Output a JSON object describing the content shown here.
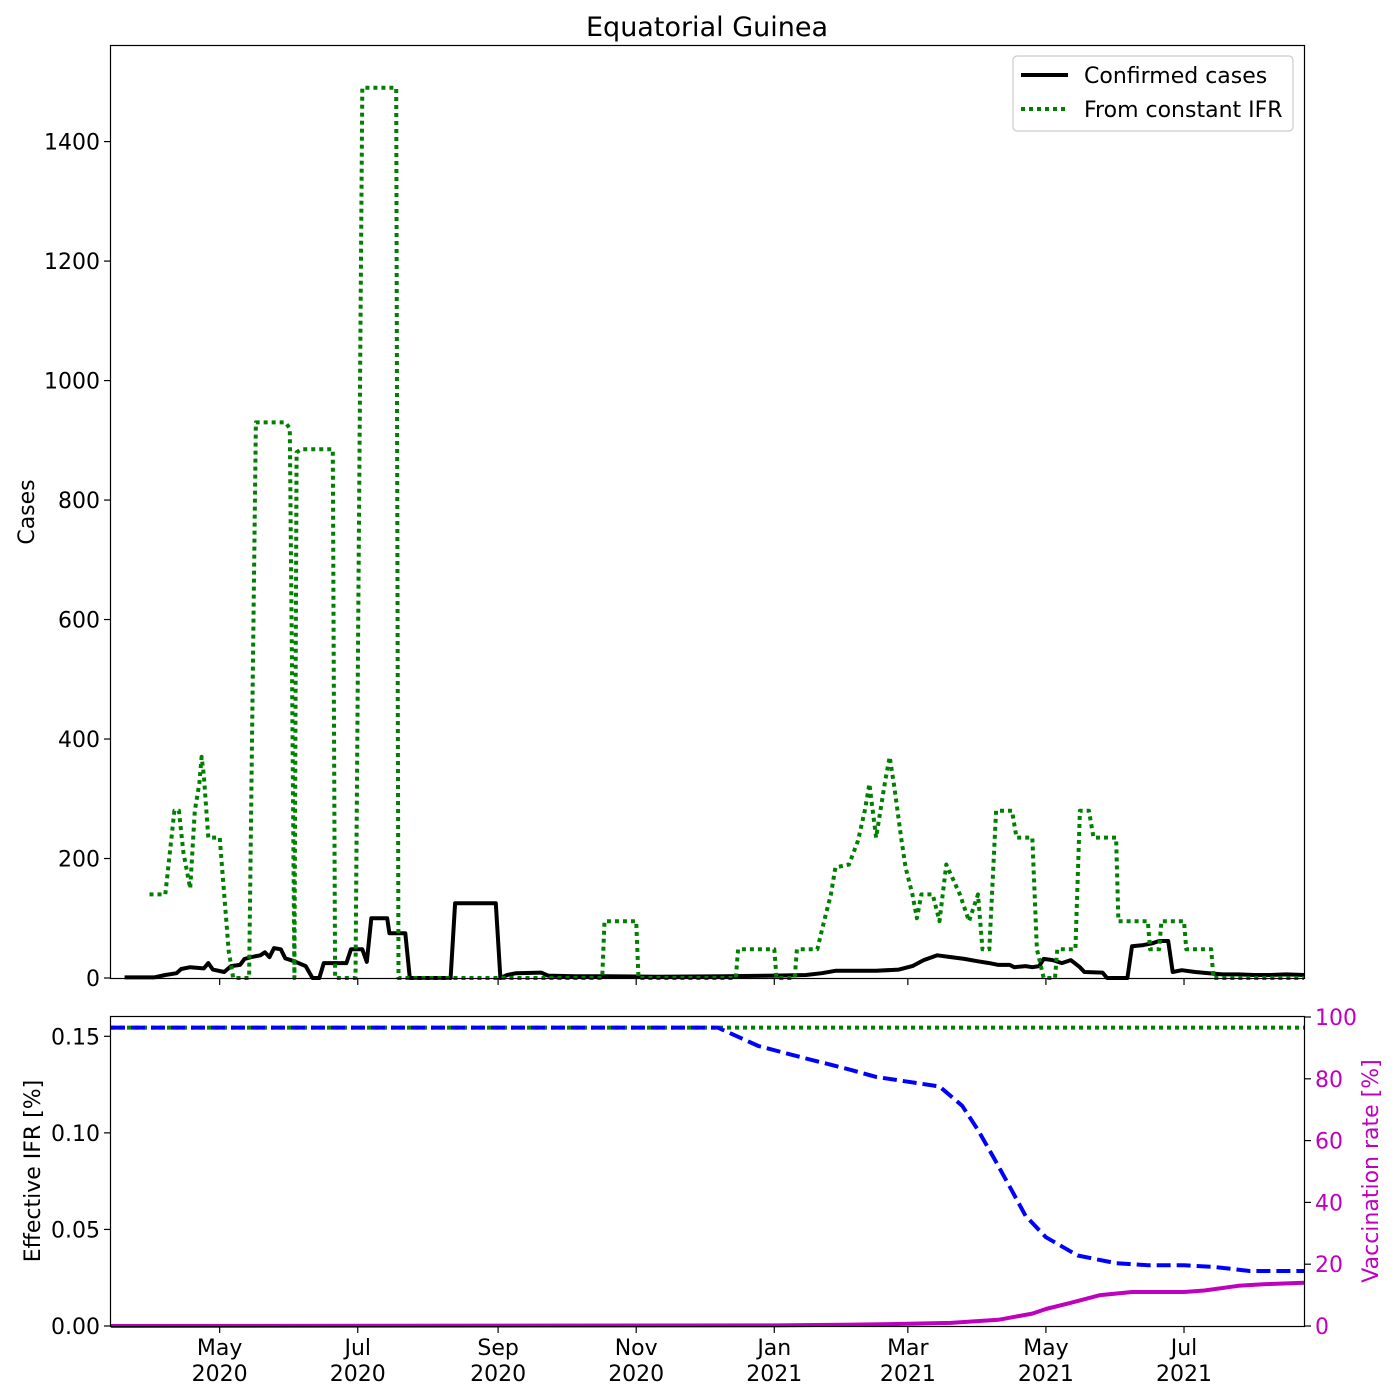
{
  "title": "Equatorial Guinea",
  "legend": {
    "position": "top-right",
    "entries": [
      {
        "label": "Confirmed cases",
        "style": "solid",
        "color": "#000000"
      },
      {
        "label": "From constant IFR",
        "style": "dotted",
        "color": "#008000"
      }
    ]
  },
  "x_ticks": [
    {
      "date": "2020-05-01",
      "line1": "May",
      "line2": "2020"
    },
    {
      "date": "2020-07-01",
      "line1": "Jul",
      "line2": "2020"
    },
    {
      "date": "2020-09-01",
      "line1": "Sep",
      "line2": "2020"
    },
    {
      "date": "2020-11-01",
      "line1": "Nov",
      "line2": "2020"
    },
    {
      "date": "2021-01-01",
      "line1": "Jan",
      "line2": "2021"
    },
    {
      "date": "2021-03-01",
      "line1": "Mar",
      "line2": "2021"
    },
    {
      "date": "2021-05-01",
      "line1": "May",
      "line2": "2021"
    },
    {
      "date": "2021-07-01",
      "line1": "Jul",
      "line2": "2021"
    }
  ],
  "chart_data": [
    {
      "type": "line",
      "title": "Equatorial Guinea",
      "xlabel": "",
      "ylabel": "Cases",
      "xlim": [
        "2020-03-14",
        "2021-08-23"
      ],
      "ylim": [
        0,
        1560
      ],
      "yticks": [
        0,
        200,
        400,
        600,
        800,
        1000,
        1200,
        1400
      ],
      "grid": false,
      "series": [
        {
          "name": "Confirmed cases",
          "color": "#000000",
          "style": "solid",
          "points": [
            [
              "2020-03-20",
              1
            ],
            [
              "2020-04-02",
              1
            ],
            [
              "2020-04-07",
              5
            ],
            [
              "2020-04-12",
              8
            ],
            [
              "2020-04-14",
              15
            ],
            [
              "2020-04-18",
              18
            ],
            [
              "2020-04-24",
              16
            ],
            [
              "2020-04-26",
              25
            ],
            [
              "2020-04-28",
              14
            ],
            [
              "2020-05-03",
              10
            ],
            [
              "2020-05-06",
              20
            ],
            [
              "2020-05-10",
              22
            ],
            [
              "2020-05-12",
              32
            ],
            [
              "2020-05-15",
              35
            ],
            [
              "2020-05-19",
              38
            ],
            [
              "2020-05-21",
              43
            ],
            [
              "2020-05-23",
              35
            ],
            [
              "2020-05-25",
              50
            ],
            [
              "2020-05-28",
              48
            ],
            [
              "2020-05-30",
              33
            ],
            [
              "2020-06-03",
              28
            ],
            [
              "2020-06-08",
              20
            ],
            [
              "2020-06-11",
              0
            ],
            [
              "2020-06-14",
              0
            ],
            [
              "2020-06-16",
              25
            ],
            [
              "2020-06-26",
              25
            ],
            [
              "2020-06-28",
              48
            ],
            [
              "2020-07-03",
              48
            ],
            [
              "2020-07-05",
              27
            ],
            [
              "2020-07-07",
              100
            ],
            [
              "2020-07-14",
              100
            ],
            [
              "2020-07-15",
              75
            ],
            [
              "2020-07-22",
              75
            ],
            [
              "2020-07-24",
              0
            ],
            [
              "2020-08-11",
              0
            ],
            [
              "2020-08-13",
              125
            ],
            [
              "2020-08-31",
              125
            ],
            [
              "2020-09-02",
              0
            ],
            [
              "2020-09-05",
              5
            ],
            [
              "2020-09-09",
              8
            ],
            [
              "2020-09-20",
              9
            ],
            [
              "2020-09-23",
              4
            ],
            [
              "2020-10-05",
              3
            ],
            [
              "2020-10-20",
              3
            ],
            [
              "2020-11-10",
              2
            ],
            [
              "2020-12-10",
              3
            ],
            [
              "2021-01-01",
              4
            ],
            [
              "2021-01-15",
              5
            ],
            [
              "2021-01-22",
              8
            ],
            [
              "2021-01-28",
              12
            ],
            [
              "2021-02-05",
              12
            ],
            [
              "2021-02-15",
              12
            ],
            [
              "2021-02-25",
              14
            ],
            [
              "2021-03-03",
              20
            ],
            [
              "2021-03-08",
              30
            ],
            [
              "2021-03-14",
              38
            ],
            [
              "2021-03-20",
              35
            ],
            [
              "2021-03-26",
              32
            ],
            [
              "2021-04-01",
              28
            ],
            [
              "2021-04-06",
              25
            ],
            [
              "2021-04-10",
              22
            ],
            [
              "2021-04-15",
              22
            ],
            [
              "2021-04-17",
              18
            ],
            [
              "2021-04-22",
              20
            ],
            [
              "2021-04-25",
              18
            ],
            [
              "2021-04-28",
              20
            ],
            [
              "2021-04-30",
              32
            ],
            [
              "2021-05-04",
              30
            ],
            [
              "2021-05-08",
              25
            ],
            [
              "2021-05-12",
              30
            ],
            [
              "2021-05-16",
              18
            ],
            [
              "2021-05-18",
              10
            ],
            [
              "2021-05-26",
              9
            ],
            [
              "2021-05-28",
              0
            ],
            [
              "2021-06-06",
              0
            ],
            [
              "2021-06-08",
              53
            ],
            [
              "2021-06-13",
              55
            ],
            [
              "2021-06-17",
              58
            ],
            [
              "2021-06-20",
              62
            ],
            [
              "2021-06-24",
              62
            ],
            [
              "2021-06-26",
              10
            ],
            [
              "2021-06-30",
              13
            ],
            [
              "2021-07-06",
              10
            ],
            [
              "2021-07-12",
              8
            ],
            [
              "2021-07-18",
              6
            ],
            [
              "2021-07-25",
              6
            ],
            [
              "2021-08-01",
              5
            ],
            [
              "2021-08-08",
              5
            ],
            [
              "2021-08-15",
              6
            ],
            [
              "2021-08-23",
              5
            ]
          ]
        },
        {
          "name": "From constant IFR",
          "color": "#008000",
          "style": "dotted",
          "points": [
            [
              "2020-03-31",
              140
            ],
            [
              "2020-04-07",
              140
            ],
            [
              "2020-04-11",
              280
            ],
            [
              "2020-04-13",
              280
            ],
            [
              "2020-04-15",
              210
            ],
            [
              "2020-04-18",
              150
            ],
            [
              "2020-04-20",
              280
            ],
            [
              "2020-04-22",
              325
            ],
            [
              "2020-04-23",
              370
            ],
            [
              "2020-04-24",
              340
            ],
            [
              "2020-04-26",
              235
            ],
            [
              "2020-05-01",
              235
            ],
            [
              "2020-05-03",
              140
            ],
            [
              "2020-05-05",
              45
            ],
            [
              "2020-05-07",
              0
            ],
            [
              "2020-05-14",
              0
            ],
            [
              "2020-05-17",
              930
            ],
            [
              "2020-05-30",
              930
            ],
            [
              "2020-06-01",
              920
            ],
            [
              "2020-06-02",
              500
            ],
            [
              "2020-06-03",
              0
            ],
            [
              "2020-06-04",
              880
            ],
            [
              "2020-06-06",
              885
            ],
            [
              "2020-06-20",
              885
            ],
            [
              "2020-06-21",
              0
            ],
            [
              "2020-06-26",
              0
            ],
            [
              "2020-06-30",
              0
            ],
            [
              "2020-07-03",
              1490
            ],
            [
              "2020-07-18",
              1490
            ],
            [
              "2020-07-19",
              0
            ],
            [
              "2020-10-17",
              0
            ],
            [
              "2020-10-18",
              95
            ],
            [
              "2020-11-01",
              95
            ],
            [
              "2020-11-02",
              0
            ],
            [
              "2020-12-15",
              0
            ],
            [
              "2020-12-16",
              48
            ],
            [
              "2021-01-01",
              48
            ],
            [
              "2021-01-02",
              0
            ],
            [
              "2021-01-10",
              0
            ],
            [
              "2021-01-11",
              48
            ],
            [
              "2021-01-20",
              48
            ],
            [
              "2021-01-23",
              95
            ],
            [
              "2021-01-26",
              140
            ],
            [
              "2021-01-28",
              185
            ],
            [
              "2021-02-03",
              190
            ],
            [
              "2021-02-07",
              230
            ],
            [
              "2021-02-10",
              280
            ],
            [
              "2021-02-12",
              325
            ],
            [
              "2021-02-15",
              235
            ],
            [
              "2021-02-19",
              330
            ],
            [
              "2021-02-21",
              370
            ],
            [
              "2021-02-23",
              320
            ],
            [
              "2021-02-26",
              235
            ],
            [
              "2021-02-28",
              185
            ],
            [
              "2021-03-03",
              140
            ],
            [
              "2021-03-05",
              100
            ],
            [
              "2021-03-07",
              140
            ],
            [
              "2021-03-12",
              140
            ],
            [
              "2021-03-15",
              95
            ],
            [
              "2021-03-18",
              190
            ],
            [
              "2021-03-24",
              140
            ],
            [
              "2021-03-28",
              95
            ],
            [
              "2021-04-01",
              140
            ],
            [
              "2021-04-03",
              48
            ],
            [
              "2021-04-06",
              48
            ],
            [
              "2021-04-09",
              280
            ],
            [
              "2021-04-16",
              280
            ],
            [
              "2021-04-18",
              235
            ],
            [
              "2021-04-25",
              235
            ],
            [
              "2021-04-27",
              48
            ],
            [
              "2021-04-30",
              0
            ],
            [
              "2021-05-05",
              0
            ],
            [
              "2021-05-06",
              48
            ],
            [
              "2021-05-14",
              48
            ],
            [
              "2021-05-16",
              280
            ],
            [
              "2021-05-20",
              280
            ],
            [
              "2021-05-22",
              235
            ],
            [
              "2021-06-01",
              235
            ],
            [
              "2021-06-02",
              95
            ],
            [
              "2021-06-15",
              95
            ],
            [
              "2021-06-16",
              48
            ],
            [
              "2021-06-20",
              48
            ],
            [
              "2021-06-21",
              95
            ],
            [
              "2021-07-01",
              95
            ],
            [
              "2021-07-02",
              48
            ],
            [
              "2021-07-13",
              48
            ],
            [
              "2021-07-14",
              0
            ],
            [
              "2021-08-23",
              0
            ]
          ]
        }
      ]
    },
    {
      "type": "line",
      "xlabel": "",
      "ylabel": "Effective IFR [%]",
      "ylim": [
        0,
        0.16
      ],
      "yticks": [
        0.0,
        0.05,
        0.1,
        0.15
      ],
      "y2label": "Vaccination rate [%]",
      "y2lim": [
        0,
        100
      ],
      "y2ticks": [
        0,
        20,
        40,
        60,
        80,
        100
      ],
      "grid": false,
      "series": [
        {
          "axis": "left",
          "color": "#008000",
          "style": "dotted",
          "points": [
            [
              "2020-03-14",
              0.1545
            ],
            [
              "2021-08-23",
              0.1545
            ]
          ]
        },
        {
          "axis": "left",
          "color": "#0000ff",
          "style": "dashed",
          "points": [
            [
              "2020-03-14",
              0.1545
            ],
            [
              "2020-12-07",
              0.1545
            ],
            [
              "2020-12-25",
              0.145
            ],
            [
              "2021-01-15",
              0.1385
            ],
            [
              "2021-02-01",
              0.1335
            ],
            [
              "2021-02-15",
              0.129
            ],
            [
              "2021-03-01",
              0.1265
            ],
            [
              "2021-03-15",
              0.124
            ],
            [
              "2021-03-25",
              0.114
            ],
            [
              "2021-04-01",
              0.1015
            ],
            [
              "2021-04-08",
              0.087
            ],
            [
              "2021-04-16",
              0.07
            ],
            [
              "2021-04-22",
              0.057
            ],
            [
              "2021-05-01",
              0.046
            ],
            [
              "2021-05-15",
              0.0365
            ],
            [
              "2021-06-01",
              0.0325
            ],
            [
              "2021-06-15",
              0.0315
            ],
            [
              "2021-07-01",
              0.0315
            ],
            [
              "2021-07-15",
              0.0305
            ],
            [
              "2021-07-30",
              0.0285
            ],
            [
              "2021-08-23",
              0.0285
            ]
          ]
        },
        {
          "axis": "right",
          "color": "#bf00bf",
          "style": "solid",
          "points": [
            [
              "2020-03-14",
              0
            ],
            [
              "2021-01-01",
              0.2
            ],
            [
              "2021-02-01",
              0.4
            ],
            [
              "2021-03-01",
              0.7
            ],
            [
              "2021-03-20",
              1.0
            ],
            [
              "2021-04-10",
              2.0
            ],
            [
              "2021-04-25",
              4.0
            ],
            [
              "2021-05-01",
              5.5
            ],
            [
              "2021-05-12",
              7.5
            ],
            [
              "2021-05-25",
              10.0
            ],
            [
              "2021-06-08",
              11.0
            ],
            [
              "2021-07-01",
              11.0
            ],
            [
              "2021-07-10",
              11.5
            ],
            [
              "2021-07-25",
              13.0
            ],
            [
              "2021-08-05",
              13.5
            ],
            [
              "2021-08-23",
              14.0
            ]
          ]
        }
      ]
    }
  ]
}
